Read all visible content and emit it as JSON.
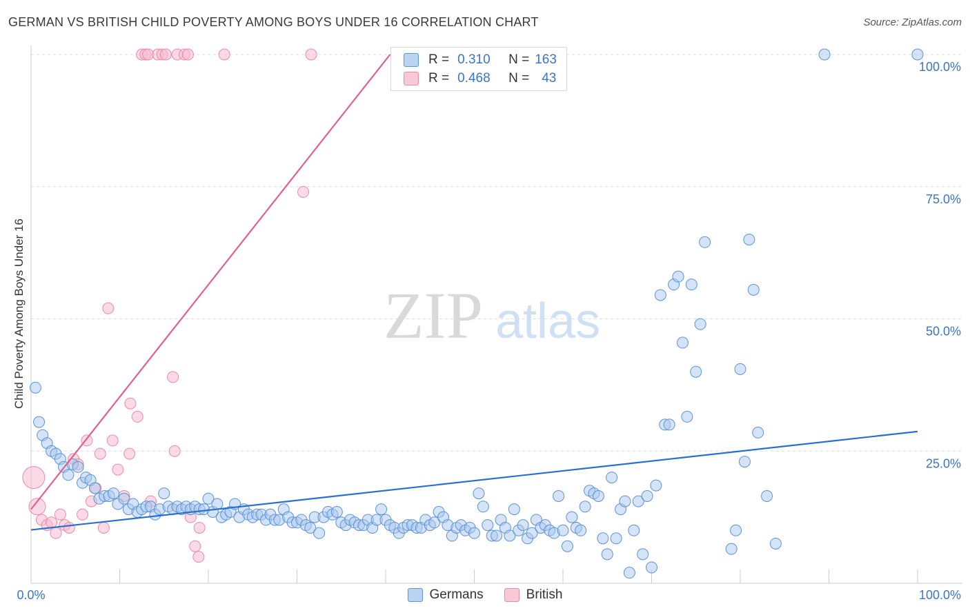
{
  "header": {
    "title": "GERMAN VS BRITISH CHILD POVERTY AMONG BOYS UNDER 16 CORRELATION CHART",
    "source": "Source: ZipAtlas.com"
  },
  "watermark": {
    "zip": "ZIP",
    "atlas": "atlas"
  },
  "legend": {
    "rows": [
      {
        "r_label": "R =",
        "r_value": "0.310",
        "n_label": "N =",
        "n_value": "163"
      },
      {
        "r_label": "R =",
        "r_value": "0.468",
        "n_label": "N =",
        "n_value": "43"
      }
    ],
    "bottom": [
      "Germans",
      "British"
    ]
  },
  "colors": {
    "germans_fill": "#a9c8f0",
    "germans_stroke": "#5b93d6",
    "germans_line": "#2a6fcf",
    "british_fill": "#f7bcd0",
    "british_stroke": "#e98aa8",
    "british_line": "#e0608a",
    "tick_label": "#3a74c8"
  },
  "chart_data": {
    "type": "scatter",
    "title": "GERMAN VS BRITISH CHILD POVERTY AMONG BOYS UNDER 16 CORRELATION CHART",
    "xlabel": "",
    "ylabel": "Child Poverty Among Boys Under 16",
    "xlim": [
      0,
      100
    ],
    "ylim": [
      0,
      100
    ],
    "x_tick_labels": [
      "0.0%",
      "100.0%"
    ],
    "y_ticks": [
      25,
      50,
      75,
      100
    ],
    "y_tick_labels": [
      "25.0%",
      "50.0%",
      "75.0%",
      "100.0%"
    ],
    "grid": true,
    "legend_position": "top-center",
    "series": [
      {
        "name": "Germans",
        "r": 0.31,
        "n": 163,
        "trend": [
          [
            0,
            10.1
          ],
          [
            100,
            28.7
          ]
        ],
        "points": [
          [
            0.5,
            37
          ],
          [
            0.9,
            30.5
          ],
          [
            1.3,
            28
          ],
          [
            1.8,
            26.5
          ],
          [
            2.3,
            25
          ],
          [
            2.8,
            24.5
          ],
          [
            3.3,
            23.5
          ],
          [
            3.7,
            22
          ],
          [
            4.2,
            20.5
          ],
          [
            4.7,
            22.5
          ],
          [
            5.3,
            22
          ],
          [
            5.8,
            19
          ],
          [
            6.2,
            20
          ],
          [
            6.7,
            19.5
          ],
          [
            7.2,
            18
          ],
          [
            7.7,
            16
          ],
          [
            8.3,
            16.5
          ],
          [
            8.8,
            16.5
          ],
          [
            9.3,
            17
          ],
          [
            9.8,
            15
          ],
          [
            10.5,
            16
          ],
          [
            11,
            14
          ],
          [
            11.5,
            15
          ],
          [
            12,
            13.5
          ],
          [
            12.5,
            14
          ],
          [
            13,
            14.5
          ],
          [
            13.5,
            14.5
          ],
          [
            14,
            13
          ],
          [
            14.5,
            14
          ],
          [
            15,
            17
          ],
          [
            15.5,
            14.5
          ],
          [
            16,
            14
          ],
          [
            16.5,
            14.5
          ],
          [
            17,
            14
          ],
          [
            17.5,
            14.5
          ],
          [
            18,
            14
          ],
          [
            18.5,
            14.5
          ],
          [
            19,
            14
          ],
          [
            19.5,
            14
          ],
          [
            20,
            16
          ],
          [
            20.5,
            13.5
          ],
          [
            21,
            15
          ],
          [
            21.5,
            12.5
          ],
          [
            22,
            13
          ],
          [
            22.5,
            13.5
          ],
          [
            23,
            15
          ],
          [
            23.5,
            12.5
          ],
          [
            24,
            14
          ],
          [
            24.5,
            13
          ],
          [
            25,
            12.5
          ],
          [
            25.5,
            13
          ],
          [
            26,
            13
          ],
          [
            26.5,
            12
          ],
          [
            27,
            13
          ],
          [
            27.5,
            12
          ],
          [
            28,
            12
          ],
          [
            28.5,
            14
          ],
          [
            29,
            12.5
          ],
          [
            29.5,
            11.5
          ],
          [
            30,
            11.5
          ],
          [
            30.5,
            12
          ],
          [
            31,
            11
          ],
          [
            31.5,
            10.5
          ],
          [
            32,
            12.5
          ],
          [
            32.5,
            9.5
          ],
          [
            33,
            12.5
          ],
          [
            33.5,
            13.5
          ],
          [
            34,
            13
          ],
          [
            34.5,
            13.5
          ],
          [
            35,
            11.5
          ],
          [
            35.5,
            11
          ],
          [
            36,
            12
          ],
          [
            36.5,
            11.5
          ],
          [
            37,
            11
          ],
          [
            37.5,
            11
          ],
          [
            38,
            12
          ],
          [
            38.5,
            10.5
          ],
          [
            39,
            12
          ],
          [
            39.5,
            14
          ],
          [
            40,
            12
          ],
          [
            40.5,
            11
          ],
          [
            41,
            10.5
          ],
          [
            41.5,
            9.5
          ],
          [
            42,
            10.5
          ],
          [
            42.5,
            11
          ],
          [
            43,
            11
          ],
          [
            43.5,
            10.5
          ],
          [
            44,
            10.5
          ],
          [
            44.5,
            12
          ],
          [
            45,
            11
          ],
          [
            45.5,
            11.5
          ],
          [
            46,
            13.5
          ],
          [
            46.5,
            12.5
          ],
          [
            47,
            11
          ],
          [
            47.5,
            9
          ],
          [
            48,
            10.5
          ],
          [
            48.5,
            11
          ],
          [
            49,
            10
          ],
          [
            49.5,
            10.5
          ],
          [
            50,
            9.5
          ],
          [
            50.5,
            17
          ],
          [
            51,
            14.5
          ],
          [
            51.5,
            11
          ],
          [
            52,
            9
          ],
          [
            52.5,
            9
          ],
          [
            53,
            12
          ],
          [
            53.5,
            10.5
          ],
          [
            54,
            9
          ],
          [
            54.5,
            14
          ],
          [
            55,
            10
          ],
          [
            55.5,
            11
          ],
          [
            56,
            8.5
          ],
          [
            56.5,
            9.5
          ],
          [
            57,
            12
          ],
          [
            57.5,
            10.5
          ],
          [
            58,
            11
          ],
          [
            58.5,
            10
          ],
          [
            59,
            9.5
          ],
          [
            59.5,
            16.5
          ],
          [
            60,
            10
          ],
          [
            60.5,
            7
          ],
          [
            61,
            12.5
          ],
          [
            61.5,
            10.5
          ],
          [
            62,
            10
          ],
          [
            62.5,
            14.5
          ],
          [
            63,
            17.5
          ],
          [
            63.5,
            17
          ],
          [
            64,
            16.5
          ],
          [
            64.5,
            8.5
          ],
          [
            65,
            5.5
          ],
          [
            65.5,
            20
          ],
          [
            66,
            8.5
          ],
          [
            66.5,
            14
          ],
          [
            67,
            15.5
          ],
          [
            67.5,
            2
          ],
          [
            68,
            10
          ],
          [
            68.5,
            15.5
          ],
          [
            69,
            5.5
          ],
          [
            69.5,
            16.5
          ],
          [
            70,
            3
          ],
          [
            70.5,
            18.5
          ],
          [
            71,
            54.5
          ],
          [
            71.5,
            30
          ],
          [
            72,
            30
          ],
          [
            72.5,
            56.5
          ],
          [
            73,
            58
          ],
          [
            73.5,
            45.5
          ],
          [
            74,
            31.5
          ],
          [
            74.5,
            56.5
          ],
          [
            75,
            40
          ],
          [
            75.5,
            49
          ],
          [
            76,
            64.5
          ],
          [
            79,
            6.5
          ],
          [
            79.5,
            10
          ],
          [
            80,
            40.5
          ],
          [
            80.5,
            23
          ],
          [
            81,
            65
          ],
          [
            81.5,
            55.5
          ],
          [
            82,
            28.5
          ],
          [
            83,
            16.5
          ],
          [
            84,
            7.5
          ],
          [
            89.5,
            100
          ],
          [
            100,
            100
          ]
        ]
      },
      {
        "name": "British",
        "r": 0.468,
        "n": 43,
        "trend": [
          [
            0,
            14
          ],
          [
            40.5,
            100
          ]
        ],
        "points": [
          [
            0.3,
            20
          ],
          [
            0.7,
            14.5
          ],
          [
            1.2,
            12
          ],
          [
            1.8,
            11
          ],
          [
            2.3,
            11.5
          ],
          [
            2.8,
            9.5
          ],
          [
            3.3,
            13
          ],
          [
            3.8,
            11
          ],
          [
            4.3,
            10.5
          ],
          [
            4.8,
            23.5
          ],
          [
            5.3,
            22.5
          ],
          [
            5.8,
            13
          ],
          [
            6.3,
            27
          ],
          [
            6.8,
            15.5
          ],
          [
            7.3,
            18
          ],
          [
            7.8,
            24.5
          ],
          [
            8.2,
            10.5
          ],
          [
            8.7,
            52
          ],
          [
            9.2,
            27
          ],
          [
            9.8,
            21.5
          ],
          [
            10.5,
            16.5
          ],
          [
            11.1,
            24.5
          ],
          [
            11.2,
            34
          ],
          [
            12.0,
            31.5
          ],
          [
            12.5,
            100
          ],
          [
            12.9,
            100
          ],
          [
            13.2,
            100
          ],
          [
            13.5,
            15.5
          ],
          [
            14.3,
            100
          ],
          [
            14.8,
            100
          ],
          [
            15.2,
            100
          ],
          [
            16.0,
            39
          ],
          [
            16.2,
            25
          ],
          [
            16.5,
            100
          ],
          [
            17.3,
            100
          ],
          [
            17.7,
            100
          ],
          [
            18.0,
            12.5
          ],
          [
            18.5,
            7
          ],
          [
            18.9,
            5
          ],
          [
            19.0,
            10.5
          ],
          [
            21.8,
            100
          ],
          [
            30.7,
            74
          ],
          [
            31.6,
            100
          ]
        ]
      }
    ]
  }
}
